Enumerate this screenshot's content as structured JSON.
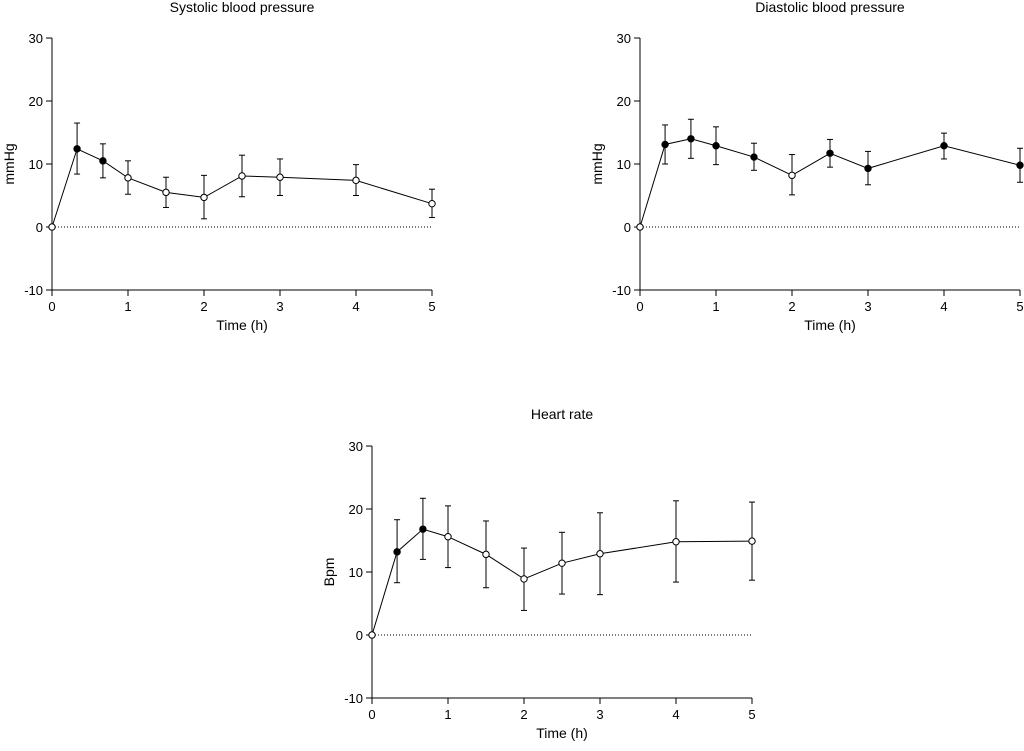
{
  "chart_data": [
    {
      "type": "line",
      "title": "Systolic blood pressure",
      "xlabel": "Time (h)",
      "ylabel": "mmHg",
      "xlim": [
        0,
        5
      ],
      "ylim": [
        -10,
        30
      ],
      "xticks": [
        "0",
        "1",
        "2",
        "3",
        "4",
        "5"
      ],
      "yticks": [
        "-10",
        "0",
        "10",
        "20",
        "30"
      ],
      "reference_line": 0,
      "series": [
        {
          "name": "Systolic blood pressure",
          "x": [
            0,
            0.33,
            0.67,
            1,
            1.5,
            2,
            2.5,
            3,
            4,
            5
          ],
          "y": [
            0,
            12.4,
            10.5,
            7.8,
            5.5,
            4.7,
            8.1,
            7.9,
            7.4,
            3.7
          ],
          "err_low": [
            0,
            8.4,
            7.8,
            5.2,
            3.1,
            1.3,
            4.8,
            5.0,
            5.0,
            1.5
          ],
          "err_high": [
            0,
            16.5,
            13.2,
            10.5,
            7.9,
            8.2,
            11.4,
            10.8,
            9.9,
            6.0
          ],
          "filled": [
            false,
            true,
            true,
            false,
            false,
            false,
            false,
            false,
            false,
            false
          ]
        }
      ]
    },
    {
      "type": "line",
      "title": "Diastolic blood pressure",
      "xlabel": "Time (h)",
      "ylabel": "mmHg",
      "xlim": [
        0,
        5
      ],
      "ylim": [
        -10,
        30
      ],
      "xticks": [
        "0",
        "1",
        "2",
        "3",
        "4",
        "5"
      ],
      "yticks": [
        "-10",
        "0",
        "10",
        "20",
        "30"
      ],
      "reference_line": 0,
      "series": [
        {
          "name": "Diastolic blood pressure",
          "x": [
            0,
            0.33,
            0.67,
            1,
            1.5,
            2,
            2.5,
            3,
            4,
            5
          ],
          "y": [
            0,
            13.1,
            14.0,
            12.9,
            11.1,
            8.2,
            11.7,
            9.3,
            12.9,
            9.8
          ],
          "err_low": [
            0,
            10.0,
            10.9,
            9.9,
            9.0,
            5.1,
            9.5,
            6.7,
            10.8,
            7.1
          ],
          "err_high": [
            0,
            16.2,
            17.1,
            15.9,
            13.3,
            11.5,
            13.9,
            12.0,
            14.9,
            12.5
          ],
          "filled": [
            false,
            true,
            true,
            true,
            true,
            false,
            true,
            true,
            true,
            true
          ]
        }
      ]
    },
    {
      "type": "line",
      "title": "Heart rate",
      "xlabel": "Time (h)",
      "ylabel": "Bpm",
      "xlim": [
        0,
        5
      ],
      "ylim": [
        -10,
        30
      ],
      "xticks": [
        "0",
        "1",
        "2",
        "3",
        "4",
        "5"
      ],
      "yticks": [
        "-10",
        "0",
        "10",
        "20",
        "30"
      ],
      "reference_line": 0,
      "series": [
        {
          "name": "Heart rate",
          "x": [
            0,
            0.33,
            0.67,
            1,
            1.5,
            2,
            2.5,
            3,
            4,
            5
          ],
          "y": [
            0,
            13.2,
            16.8,
            15.6,
            12.8,
            8.9,
            11.4,
            12.9,
            14.8,
            14.9
          ],
          "err_low": [
            0,
            8.3,
            12.0,
            10.7,
            7.5,
            3.9,
            6.5,
            6.4,
            8.4,
            8.7
          ],
          "err_high": [
            0,
            18.3,
            21.7,
            20.5,
            18.1,
            13.8,
            16.3,
            19.4,
            21.3,
            21.1
          ],
          "filled": [
            false,
            true,
            true,
            false,
            false,
            false,
            false,
            false,
            false,
            false
          ]
        }
      ]
    }
  ]
}
